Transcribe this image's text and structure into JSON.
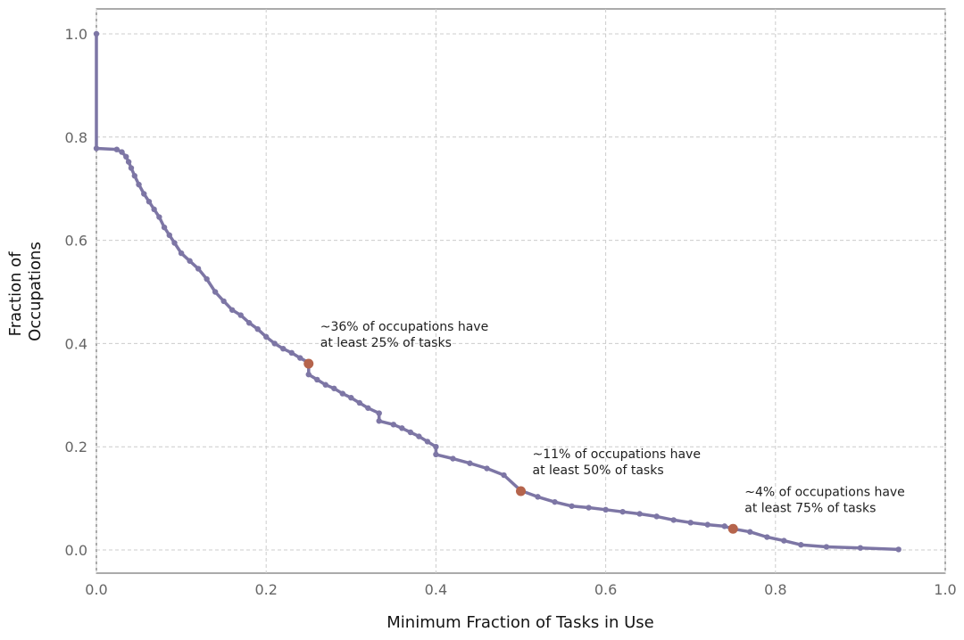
{
  "chart_data": {
    "type": "line",
    "xlabel": "Minimum Fraction of Tasks in Use",
    "ylabel": [
      "Fraction of",
      "Occupations"
    ],
    "xlim": [
      0,
      1
    ],
    "ylim": [
      0,
      1
    ],
    "grid": true,
    "x_ticks": [
      "0.0",
      "0.2",
      "0.4",
      "0.6",
      "0.8",
      "1.0"
    ],
    "y_ticks": [
      "0.0",
      "0.2",
      "0.4",
      "0.6",
      "0.8",
      "1.0"
    ],
    "series": [
      {
        "color": "#7d76a5",
        "points": [
          [
            0.0,
            1.0
          ],
          [
            0.0,
            0.778
          ],
          [
            0.024,
            0.776
          ],
          [
            0.03,
            0.771
          ],
          [
            0.035,
            0.762
          ],
          [
            0.038,
            0.752
          ],
          [
            0.041,
            0.74
          ],
          [
            0.045,
            0.725
          ],
          [
            0.05,
            0.708
          ],
          [
            0.056,
            0.69
          ],
          [
            0.062,
            0.675
          ],
          [
            0.068,
            0.66
          ],
          [
            0.074,
            0.645
          ],
          [
            0.08,
            0.625
          ],
          [
            0.086,
            0.61
          ],
          [
            0.092,
            0.595
          ],
          [
            0.1,
            0.575
          ],
          [
            0.11,
            0.56
          ],
          [
            0.12,
            0.545
          ],
          [
            0.13,
            0.525
          ],
          [
            0.14,
            0.5
          ],
          [
            0.15,
            0.482
          ],
          [
            0.16,
            0.465
          ],
          [
            0.17,
            0.455
          ],
          [
            0.18,
            0.44
          ],
          [
            0.19,
            0.428
          ],
          [
            0.2,
            0.413
          ],
          [
            0.21,
            0.4
          ],
          [
            0.22,
            0.39
          ],
          [
            0.23,
            0.382
          ],
          [
            0.24,
            0.372
          ],
          [
            0.25,
            0.363
          ],
          [
            0.25,
            0.34
          ],
          [
            0.26,
            0.33
          ],
          [
            0.27,
            0.32
          ],
          [
            0.28,
            0.313
          ],
          [
            0.29,
            0.303
          ],
          [
            0.3,
            0.295
          ],
          [
            0.31,
            0.285
          ],
          [
            0.32,
            0.275
          ],
          [
            0.333,
            0.265
          ],
          [
            0.333,
            0.25
          ],
          [
            0.35,
            0.243
          ],
          [
            0.36,
            0.236
          ],
          [
            0.37,
            0.228
          ],
          [
            0.38,
            0.22
          ],
          [
            0.39,
            0.21
          ],
          [
            0.4,
            0.2
          ],
          [
            0.4,
            0.185
          ],
          [
            0.42,
            0.177
          ],
          [
            0.44,
            0.168
          ],
          [
            0.46,
            0.158
          ],
          [
            0.48,
            0.145
          ],
          [
            0.5,
            0.115
          ],
          [
            0.52,
            0.103
          ],
          [
            0.54,
            0.093
          ],
          [
            0.56,
            0.085
          ],
          [
            0.58,
            0.082
          ],
          [
            0.6,
            0.078
          ],
          [
            0.62,
            0.074
          ],
          [
            0.64,
            0.07
          ],
          [
            0.66,
            0.065
          ],
          [
            0.68,
            0.058
          ],
          [
            0.7,
            0.053
          ],
          [
            0.72,
            0.049
          ],
          [
            0.74,
            0.046
          ],
          [
            0.75,
            0.041
          ],
          [
            0.77,
            0.035
          ],
          [
            0.79,
            0.025
          ],
          [
            0.81,
            0.018
          ],
          [
            0.83,
            0.01
          ],
          [
            0.86,
            0.006
          ],
          [
            0.9,
            0.004
          ],
          [
            0.945,
            0.001
          ]
        ]
      }
    ],
    "highlights": [
      {
        "x": 0.25,
        "y": 0.361,
        "color": "#b5644c",
        "label": [
          "~36% of occupations have",
          "at least 25% of tasks"
        ]
      },
      {
        "x": 0.5,
        "y": 0.114,
        "color": "#b5644c",
        "label": [
          "~11% of occupations have",
          "at least 50% of tasks"
        ]
      },
      {
        "x": 0.75,
        "y": 0.041,
        "color": "#b5644c",
        "label": [
          "~4% of occupations have",
          "at least 75% of tasks"
        ]
      }
    ]
  }
}
